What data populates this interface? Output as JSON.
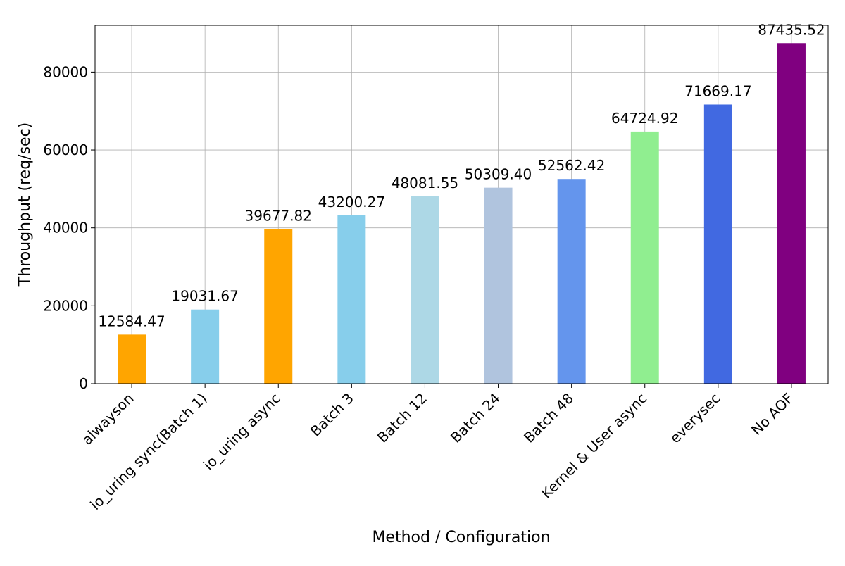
{
  "chart_data": {
    "type": "bar",
    "title": "",
    "xlabel": "Method / Configuration",
    "ylabel": "Throughput (req/sec)",
    "ylim": [
      0,
      92000
    ],
    "yticks": [
      0,
      20000,
      40000,
      60000,
      80000
    ],
    "grid": true,
    "legend": "none",
    "categories": [
      "alwayson",
      "io_uring sync(Batch 1)",
      "io_uring async",
      "Batch 3",
      "Batch 12",
      "Batch 24",
      "Batch 48",
      "Kernel & User async",
      "everysec",
      "No AOF"
    ],
    "values": [
      12584.47,
      19031.67,
      39677.82,
      43200.27,
      48081.55,
      50309.4,
      52562.42,
      64724.92,
      71669.17,
      87435.52
    ],
    "value_labels": [
      "12584.47",
      "19031.67",
      "39677.82",
      "43200.27",
      "48081.55",
      "50309.40",
      "52562.42",
      "64724.92",
      "71669.17",
      "87435.52"
    ],
    "colors": [
      "#ffa500",
      "#87ceeb",
      "#ffa500",
      "#87ceeb",
      "#add8e6",
      "#b0c4de",
      "#6495ed",
      "#90ee90",
      "#4169e1",
      "#800080"
    ]
  }
}
